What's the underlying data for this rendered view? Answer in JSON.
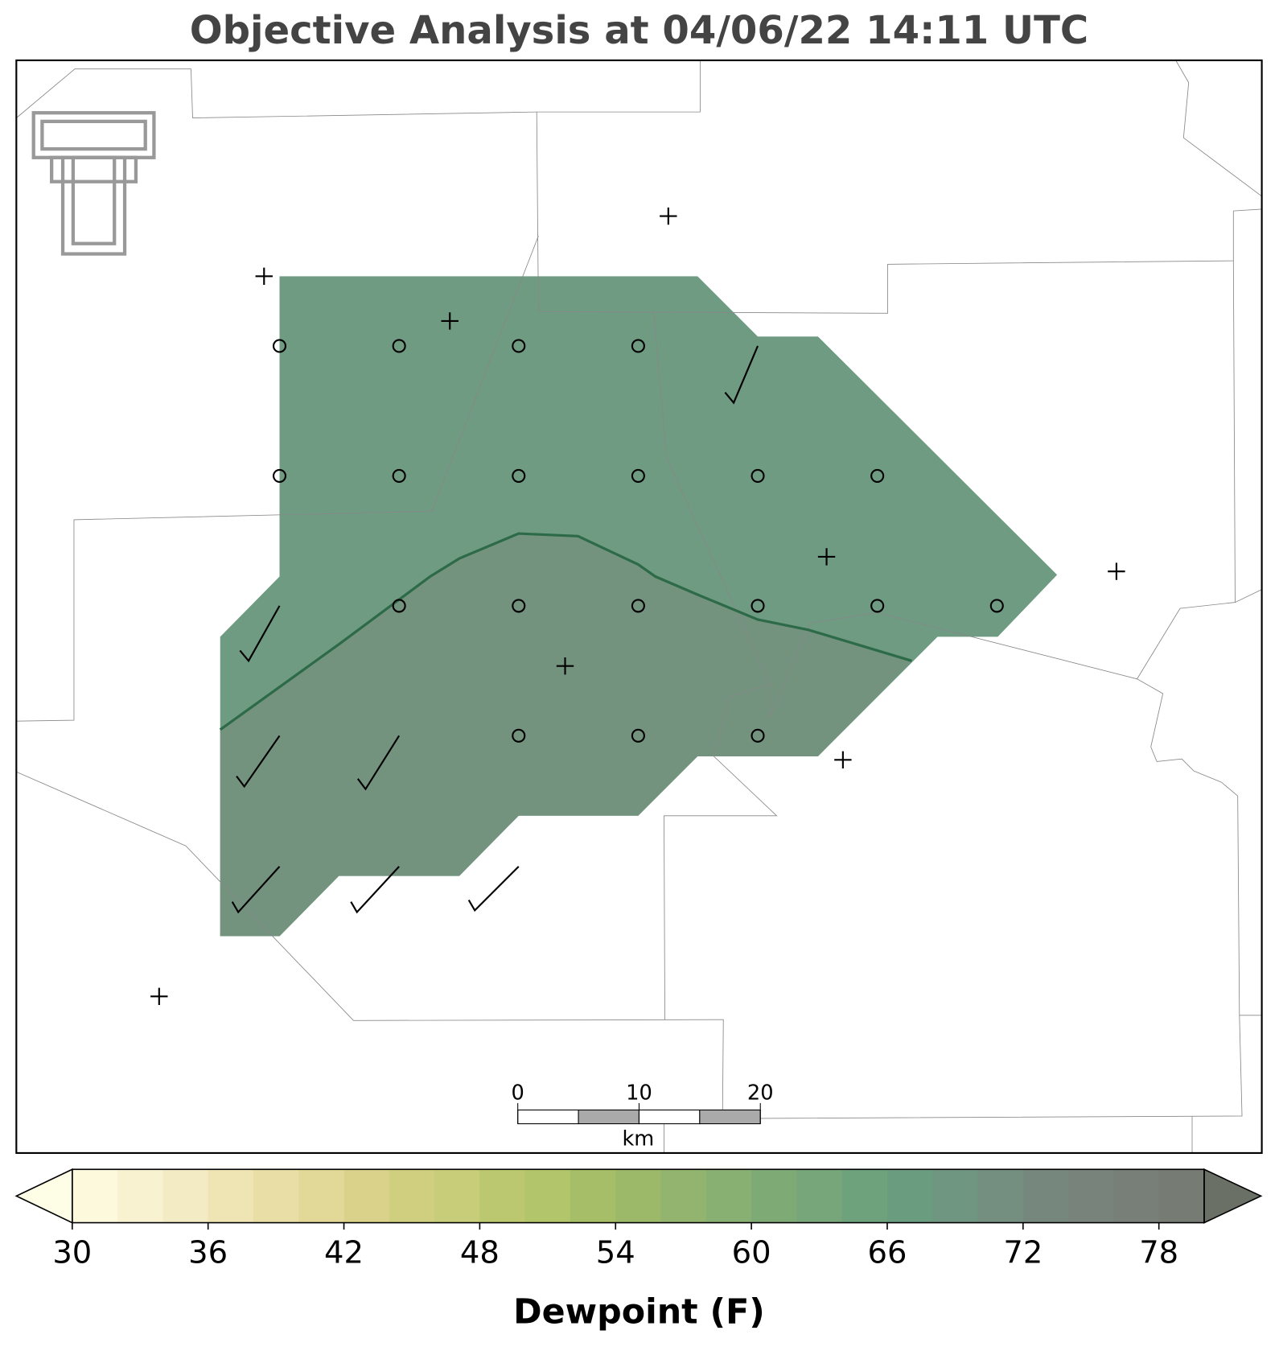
{
  "title": "Objective Analysis at 04/06/22 14:11 UTC",
  "colorbar": {
    "label": "Dewpoint (F)",
    "lim": [
      30,
      80
    ],
    "ticks": [
      30,
      36,
      42,
      48,
      54,
      60,
      66,
      72,
      78
    ],
    "colors": [
      "#fcf9dc",
      "#f8f2d0",
      "#f3ebc3",
      "#eee4b4",
      "#e9dfa6",
      "#e2d898",
      "#dad28b",
      "#d0cf80",
      "#c8cd79",
      "#bcc870",
      "#b2c56a",
      "#a6be68",
      "#9cb96a",
      "#92b46e",
      "#88b072",
      "#7eaa75",
      "#76a67a",
      "#6ea27d",
      "#6a9c80",
      "#6f9681",
      "#748e7f",
      "#76887d",
      "#77837b",
      "#777f78",
      "#767b74"
    ],
    "under_color": "#fefde6",
    "over_color": "#6b7066"
  },
  "scale_bar": {
    "ticks": [
      0,
      10,
      20
    ],
    "unit": "km"
  }
}
